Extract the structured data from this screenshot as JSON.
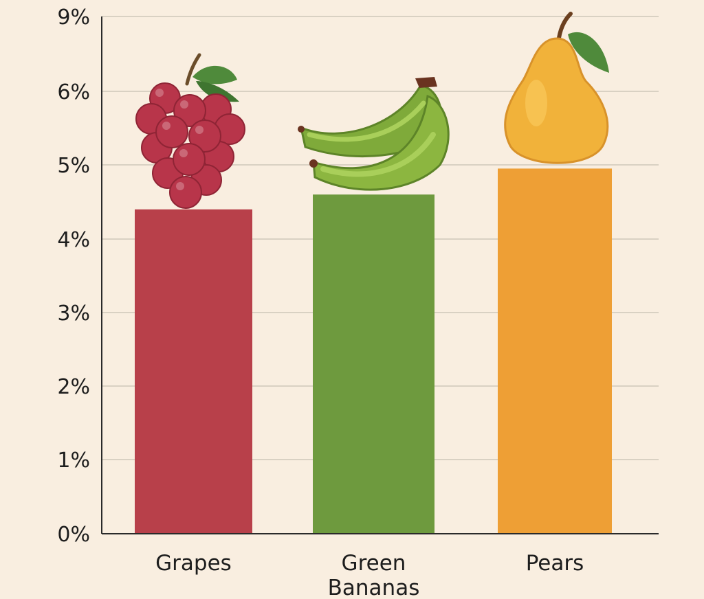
{
  "chart_data": {
    "type": "bar",
    "title": "",
    "xlabel": "",
    "ylabel": "",
    "categories": [
      "Grapes",
      "Green\nBananas",
      "Pears"
    ],
    "values": [
      4.4,
      4.6,
      4.95
    ],
    "y_ticks": [
      {
        "value": 0,
        "label": "0%"
      },
      {
        "value": 1,
        "label": "1%"
      },
      {
        "value": 2,
        "label": "2%"
      },
      {
        "value": 3,
        "label": "3%"
      },
      {
        "value": 4,
        "label": "4%"
      },
      {
        "value": 5,
        "label": "5%"
      },
      {
        "value": 6,
        "label": "6%"
      },
      {
        "value": 9,
        "label": "9%"
      }
    ],
    "ylim": [
      0,
      9
    ],
    "grid": true,
    "bar_colors": [
      "#b8404a",
      "#6e9a3e",
      "#ee9f35"
    ],
    "bar_icons": [
      "grapes-icon",
      "bananas-icon",
      "pear-icon"
    ]
  }
}
